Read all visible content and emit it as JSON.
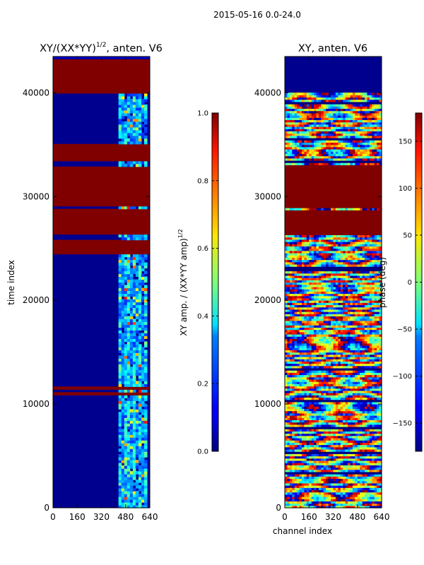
{
  "figure": {
    "suptitle": "2015-05-16 0.0-24.0"
  },
  "chart_data": [
    {
      "type": "heatmap",
      "title": "XY/(XX*YY)^{1/2}, anten. V6",
      "title_main": "XY/(XX*YY)",
      "title_sup": "1/2",
      "title_tail": ", anten. V6",
      "xlabel": "",
      "ylabel": "time index",
      "xlim": [
        0,
        640
      ],
      "ylim": [
        0,
        43500
      ],
      "xticks": [
        0,
        160,
        320,
        480,
        640
      ],
      "yticks": [
        0,
        10000,
        20000,
        30000,
        40000
      ],
      "colorbar": {
        "label": "XY amp. / (XX*YY amp)^{1/2}",
        "label_main": "XY amp. / (XX*YY amp)",
        "label_sup": "1/2",
        "range": [
          0.0,
          1.0
        ],
        "ticks": [
          0.0,
          0.2,
          0.4,
          0.6,
          0.8,
          1.0
        ],
        "ticklabels": [
          "0.0",
          "0.2",
          "0.4",
          "0.6",
          "0.8",
          "1.0"
        ]
      },
      "saturated_bands": [
        [
          40000,
          43300
        ],
        [
          33500,
          35200
        ],
        [
          29000,
          33000
        ],
        [
          26300,
          28800
        ],
        [
          24500,
          25900
        ],
        [
          11300,
          11600
        ],
        [
          10800,
          11100
        ]
      ],
      "colormap": "jet"
    },
    {
      "type": "heatmap",
      "title": "XY, anten. V6",
      "xlabel": "channel index",
      "ylabel": "",
      "xlim": [
        0,
        640
      ],
      "ylim": [
        0,
        43500
      ],
      "xticks": [
        0,
        160,
        320,
        480,
        640
      ],
      "yticks": [
        0,
        10000,
        20000,
        30000,
        40000
      ],
      "colorbar": {
        "label": "phase (deg)",
        "range": [
          -180,
          180
        ],
        "ticks": [
          150,
          100,
          50,
          0,
          -50,
          -100,
          -150
        ],
        "ticklabels": [
          "150",
          "100",
          "50",
          "0",
          "−50",
          "−100",
          "−150"
        ]
      },
      "saturated_bands": [
        [
          40000,
          43300
        ],
        [
          29000,
          33000
        ],
        [
          26300,
          28800
        ]
      ],
      "colormap": "jet"
    }
  ]
}
